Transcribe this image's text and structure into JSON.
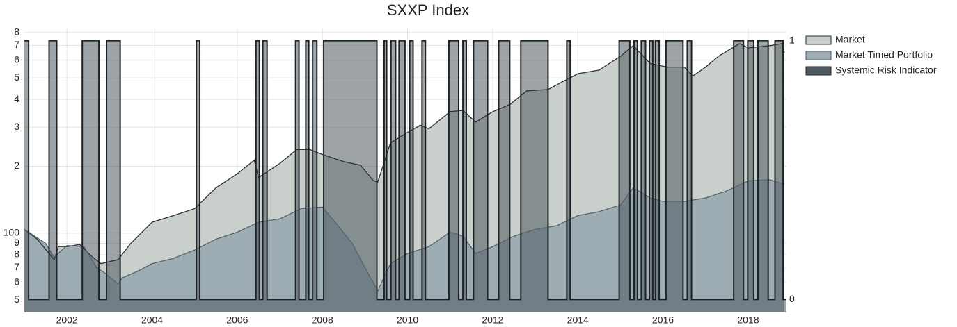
{
  "chart_data": {
    "type": "area",
    "title": "SXXP Index",
    "log_y": true,
    "grid": true,
    "legend": "right",
    "xlim": [
      2001,
      2018.9
    ],
    "xticks": [
      2002,
      2004,
      2006,
      2008,
      2010,
      2012,
      2014,
      2016,
      2018
    ],
    "ylim": [
      44,
      840
    ],
    "yticks": [
      {
        "value": 50,
        "label": "5"
      },
      {
        "value": 60,
        "label": "6"
      },
      {
        "value": 70,
        "label": "7"
      },
      {
        "value": 80,
        "label": "8"
      },
      {
        "value": 90,
        "label": "9"
      },
      100,
      {
        "value": 200,
        "label": "2"
      },
      {
        "value": 300,
        "label": "3"
      },
      {
        "value": 400,
        "label": "4"
      },
      {
        "value": 500,
        "label": "5"
      },
      {
        "value": 600,
        "label": "6"
      },
      {
        "value": 700,
        "label": "7"
      },
      {
        "value": 800,
        "label": "8"
      }
    ],
    "y2lim": [
      -0.05,
      1.05
    ],
    "y2ticks": [
      0,
      1
    ],
    "series": [
      {
        "name": "Market",
        "color": "#c9d0cb",
        "line_color": "#2b2f31",
        "x": [
          2001.0,
          2001.3,
          2001.7,
          2001.8,
          2002.0,
          2002.3,
          2002.6,
          2002.8,
          2003.2,
          2003.5,
          2004.0,
          2004.5,
          2005.0,
          2005.5,
          2006.0,
          2006.4,
          2006.5,
          2007.0,
          2007.4,
          2007.7,
          2008.0,
          2008.5,
          2008.9,
          2009.2,
          2009.3,
          2009.6,
          2010.0,
          2010.3,
          2010.5,
          2011.0,
          2011.3,
          2011.6,
          2012.0,
          2012.4,
          2012.8,
          2013.3,
          2013.6,
          2014.0,
          2014.5,
          2015.0,
          2015.3,
          2015.7,
          2016.1,
          2016.5,
          2016.7,
          2017.0,
          2017.3,
          2017.8,
          2018.0,
          2018.5,
          2018.8,
          2018.85
        ],
        "values": [
          104,
          94,
          76,
          87,
          87,
          89,
          78,
          73,
          76,
          90,
          112,
          120,
          129,
          160,
          185,
          213,
          178,
          206,
          238,
          238,
          226,
          210,
          202,
          172,
          170,
          255,
          284,
          306,
          295,
          352,
          357,
          316,
          352,
          379,
          437,
          443,
          476,
          522,
          542,
          625,
          697,
          580,
          559,
          559,
          510,
          559,
          625,
          713,
          682,
          697,
          713,
          647
        ]
      },
      {
        "name": "Market Timed Portfolio",
        "color": "#9eacb4",
        "line_color": "#55636b",
        "x": [
          2001.0,
          2001.5,
          2001.7,
          2002.0,
          2002.4,
          2002.7,
          2002.9,
          2003.2,
          2003.3,
          2003.7,
          2004.0,
          2004.5,
          2005.0,
          2005.5,
          2006.0,
          2006.5,
          2007.0,
          2007.5,
          2008.0,
          2008.3,
          2008.7,
          2009.0,
          2009.3,
          2009.6,
          2010.0,
          2010.5,
          2011.0,
          2011.3,
          2011.6,
          2012.0,
          2012.5,
          2013.0,
          2013.5,
          2014.0,
          2014.5,
          2015.0,
          2015.3,
          2015.7,
          2016.0,
          2016.5,
          2017.0,
          2017.5,
          2018.0,
          2018.5,
          2018.85
        ],
        "values": [
          104,
          90,
          78,
          88,
          87,
          70,
          66,
          59,
          63,
          68,
          73,
          77,
          84,
          94,
          101,
          112,
          116,
          129,
          131,
          112,
          90,
          70,
          55,
          73,
          81,
          87,
          101,
          97,
          81,
          87,
          97,
          104,
          108,
          120,
          125,
          134,
          160,
          144,
          139,
          139,
          144,
          155,
          172,
          174,
          166
        ]
      },
      {
        "name": "Systemic Risk Indicator",
        "color": "#4e5a60",
        "line_color": "#1e2326",
        "axis": "y2",
        "step": "post",
        "x": [
          2001.0,
          2001.1,
          2001.58,
          2001.76,
          2002.36,
          2002.75,
          2002.93,
          2003.25,
          2005.04,
          2005.12,
          2006.44,
          2006.52,
          2006.6,
          2006.7,
          2007.37,
          2007.45,
          2007.61,
          2007.68,
          2007.77,
          2007.87,
          2008.03,
          2009.28,
          2009.45,
          2009.51,
          2009.61,
          2009.72,
          2009.8,
          2009.94,
          2010.05,
          2010.13,
          2010.34,
          2010.42,
          2010.97,
          2011.2,
          2011.3,
          2011.38,
          2011.55,
          2011.88,
          2012.14,
          2012.4,
          2012.66,
          2013.3,
          2013.74,
          2013.82,
          2014.97,
          2015.22,
          2015.32,
          2015.4,
          2015.49,
          2015.59,
          2015.68,
          2015.76,
          2015.82,
          2015.91,
          2016.07,
          2016.47,
          2016.57,
          2016.67,
          2017.66,
          2017.89,
          2017.99,
          2018.13,
          2018.23,
          2018.47,
          2018.63,
          2018.82
        ],
        "values": [
          1,
          0,
          1,
          0,
          1,
          0,
          1,
          0,
          1,
          0,
          1,
          0,
          1,
          0,
          1,
          0,
          1,
          0,
          1,
          0,
          1,
          0,
          1,
          0,
          1,
          0,
          1,
          0,
          1,
          0,
          1,
          0,
          1,
          0,
          1,
          0,
          1,
          0,
          1,
          0,
          1,
          0,
          1,
          0,
          1,
          0,
          1,
          0,
          1,
          0,
          1,
          0,
          1,
          0,
          1,
          0,
          1,
          0,
          1,
          0,
          1,
          0,
          1,
          0,
          1,
          0
        ]
      }
    ]
  }
}
